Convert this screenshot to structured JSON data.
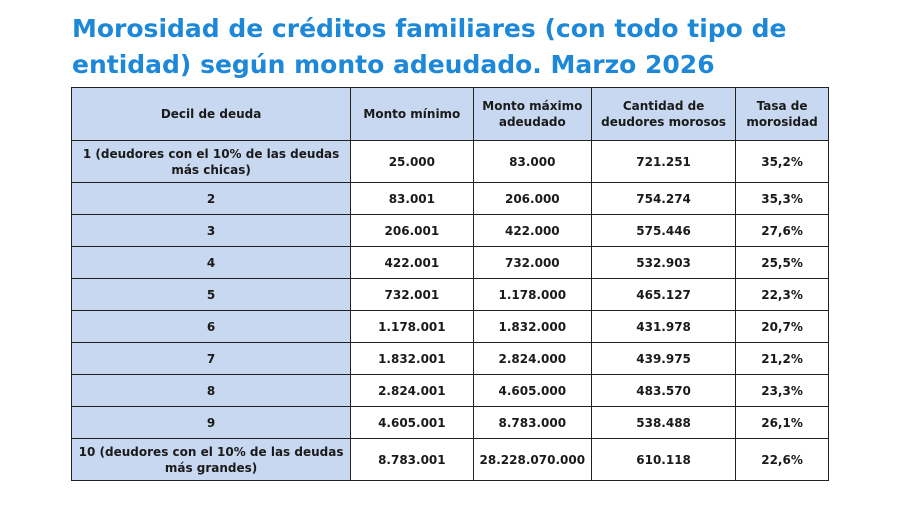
{
  "title": "Morosidad de créditos familiares (con todo tipo de entidad) según monto adeudado. Marzo 2026",
  "table": {
    "headers": [
      "Decil de deuda",
      "Monto mínimo",
      "Monto máximo adeudado",
      "Cantidad de deudores morosos",
      "Tasa de morosidad"
    ],
    "rows": [
      [
        "1 (deudores con el 10% de las deudas más chicas)",
        "25.000",
        "83.000",
        "721.251",
        "35,2%"
      ],
      [
        "2",
        "83.001",
        "206.000",
        "754.274",
        "35,3%"
      ],
      [
        "3",
        "206.001",
        "422.000",
        "575.446",
        "27,6%"
      ],
      [
        "4",
        "422.001",
        "732.000",
        "532.903",
        "25,5%"
      ],
      [
        "5",
        "732.001",
        "1.178.000",
        "465.127",
        "22,3%"
      ],
      [
        "6",
        "1.178.001",
        "1.832.000",
        "431.978",
        "20,7%"
      ],
      [
        "7",
        "1.832.001",
        "2.824.000",
        "439.975",
        "21,2%"
      ],
      [
        "8",
        "2.824.001",
        "4.605.000",
        "483.570",
        "23,3%"
      ],
      [
        "9",
        "4.605.001",
        "8.783.000",
        "538.488",
        "26,1%"
      ],
      [
        "10 (deudores con el 10% de las deudas más grandes)",
        "8.783.001",
        "28.228.070.000",
        "610.118",
        "22,6%"
      ]
    ]
  },
  "colors": {
    "title": "#1e88d8",
    "header_fill": "#c8d8f0",
    "border": "#222222"
  }
}
